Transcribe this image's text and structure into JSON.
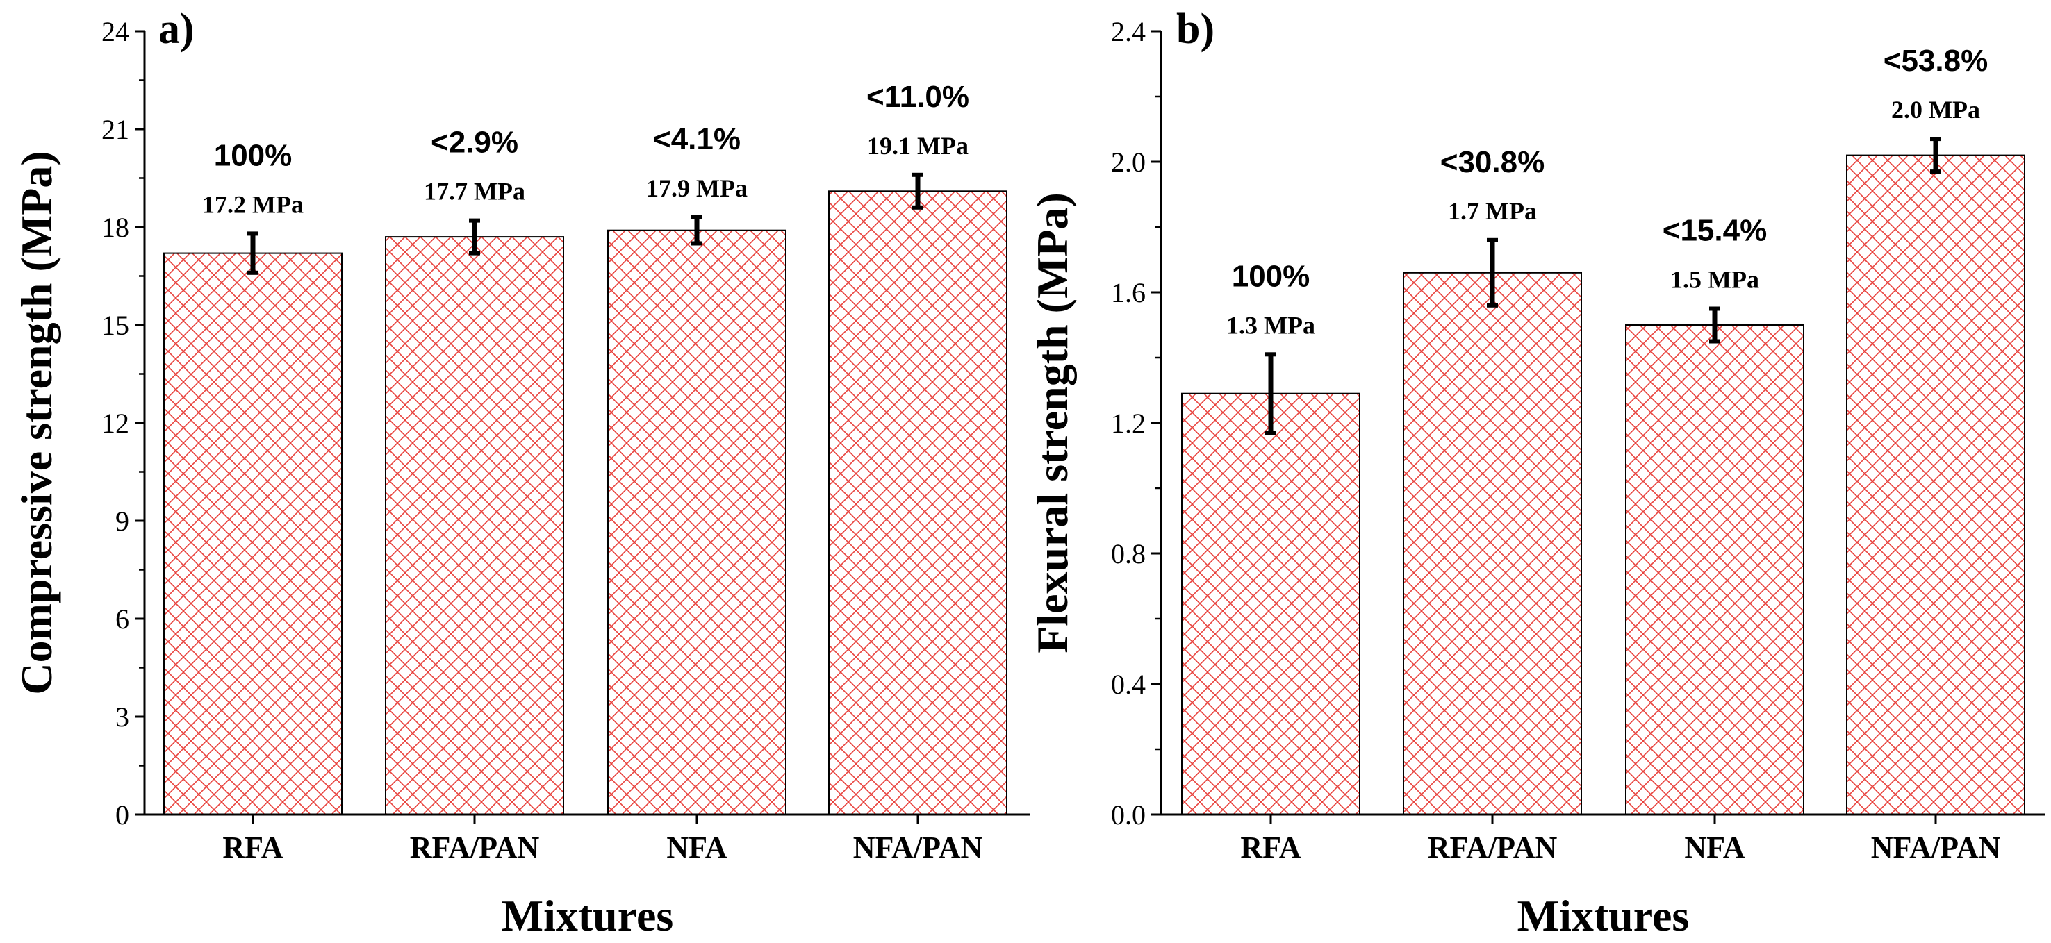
{
  "chart_data": [
    {
      "type": "bar",
      "panel_label": "a)",
      "xlabel": "Mixtures",
      "ylabel": "Compressive strength (MPa)",
      "ylim": [
        0,
        24
      ],
      "yticks": [
        0,
        3,
        6,
        9,
        12,
        15,
        18,
        21,
        24
      ],
      "ytick_labels": [
        "0",
        "3",
        "6",
        "9",
        "12",
        "15",
        "18",
        "21",
        "24"
      ],
      "categories": [
        "RFA",
        "RFA/PAN",
        "NFA",
        "NFA/PAN"
      ],
      "values": [
        17.2,
        17.7,
        17.9,
        19.1
      ],
      "errors": [
        0.6,
        0.5,
        0.4,
        0.5
      ],
      "value_labels": [
        "17.2 MPa",
        "17.7 MPa",
        "17.9 MPa",
        "19.1 MPa"
      ],
      "percent_labels": [
        "100%",
        "<2.9%",
        "<4.1%",
        "<11.0%"
      ],
      "bar_pattern": "crosshatch",
      "bar_color": "#e8413c"
    },
    {
      "type": "bar",
      "panel_label": "b)",
      "xlabel": "Mixtures",
      "ylabel": "Flexural strength (MPa)",
      "ylim": [
        0,
        2.4
      ],
      "yticks": [
        0,
        0.4,
        0.8,
        1.2,
        1.6,
        2.0,
        2.4
      ],
      "ytick_labels": [
        "0.0",
        "0.4",
        "0.8",
        "1.2",
        "1.6",
        "2.0",
        "2.4"
      ],
      "categories": [
        "RFA",
        "RFA/PAN",
        "NFA",
        "NFA/PAN"
      ],
      "values": [
        1.29,
        1.66,
        1.5,
        2.02
      ],
      "errors": [
        0.12,
        0.1,
        0.05,
        0.05
      ],
      "value_labels": [
        "1.3 MPa",
        "1.7 MPa",
        "1.5 MPa",
        "2.0 MPa"
      ],
      "percent_labels": [
        "100%",
        "<30.8%",
        "<15.4%",
        "<53.8%"
      ],
      "bar_pattern": "crosshatch",
      "bar_color": "#e8413c"
    }
  ]
}
